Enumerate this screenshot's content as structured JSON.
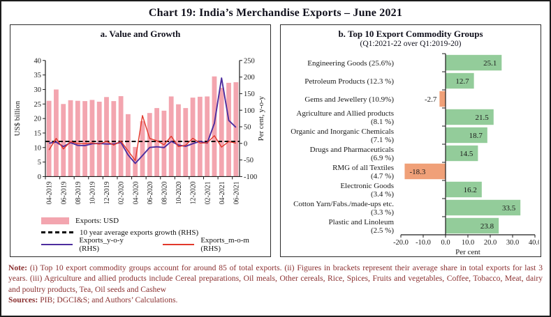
{
  "figure": {
    "title": "Chart 19: India’s Merchandise Exports – June 2021",
    "note": {
      "label": "Note:",
      "text": "(i) Top 10 export commodity groups account for around 85 of total exports. (ii) Figures in brackets represent their average share in total exports for last 3 years. (iii) Agriculture and allied products include Cereal preparations, Oil meals, Other cereals, Rice, Spices, Fruits and vegetables, Coffee, Tobacco, Meat, dairy and poultry products, Tea, Oil seeds and Cashew",
      "sources_label": "Sources:",
      "sources_text": "PIB; DGCI&S; and Authors’ Calculations."
    }
  },
  "chart_data": [
    {
      "id": "value-and-growth",
      "type": "bar",
      "subtype": "combo-bar-line",
      "title": "a. Value and Growth",
      "ylabel_left": "US$ billion",
      "ylabel_right": "Per cent, y-o-y",
      "ylim_left": [
        0,
        40
      ],
      "yticks_left": [
        0,
        5,
        10,
        15,
        20,
        25,
        30,
        35,
        40
      ],
      "ylim_right": [
        -100,
        250
      ],
      "yticks_right": [
        -100,
        -50,
        0,
        50,
        100,
        150,
        200,
        250
      ],
      "months": [
        "04-2019",
        "05-2019",
        "06-2019",
        "07-2019",
        "08-2019",
        "09-2019",
        "10-2019",
        "11-2019",
        "12-2019",
        "01-2020",
        "02-2020",
        "03-2020",
        "04-2020",
        "05-2020",
        "06-2020",
        "07-2020",
        "08-2020",
        "09-2020",
        "10-2020",
        "11-2020",
        "12-2020",
        "01-2021",
        "02-2021",
        "03-2021",
        "04-2021",
        "05-2021",
        "06-2021"
      ],
      "xtick_labels": [
        "04-2019",
        "06-2019",
        "08-2019",
        "10-2019",
        "12-2019",
        "02-2020",
        "04-2020",
        "06-2020",
        "08-2020",
        "10-2020",
        "12-2020",
        "02-2021",
        "04-2021",
        "06-2021"
      ],
      "bar_series": {
        "name": "Exports: USD",
        "axis": "left",
        "color": "#f3a5af",
        "values": [
          26.1,
          30.0,
          25.0,
          26.3,
          26.1,
          26.0,
          26.4,
          25.8,
          27.4,
          26.0,
          27.7,
          21.5,
          10.2,
          19.1,
          21.9,
          23.6,
          22.7,
          27.6,
          24.9,
          23.6,
          27.2,
          27.5,
          27.6,
          34.5,
          30.6,
          32.3,
          32.5
        ]
      },
      "reference_line": {
        "name": "10 year average exports growth (RHS)",
        "axis": "right",
        "style": "dashed",
        "color": "#000000",
        "value": 6
      },
      "line_series": [
        {
          "name": "Exports_y-o-y (RHS)",
          "axis": "right",
          "color": "#4d2d9e",
          "values": [
            0.6,
            3.9,
            -9.7,
            2.3,
            -6.0,
            -6.6,
            -1.1,
            -0.3,
            -1.8,
            -1.7,
            2.9,
            -34.6,
            -60.3,
            -36.5,
            -12.4,
            -10.2,
            -12.7,
            6.0,
            -5.1,
            -8.7,
            -0.8,
            6.2,
            0.7,
            60.3,
            197.0,
            69.4,
            48.3
          ]
        },
        {
          "name": "Exports_m-o-m (RHS)",
          "axis": "right",
          "color": "#e2382b",
          "values": [
            -19.9,
            15.0,
            -16.6,
            5.3,
            -0.8,
            -0.4,
            1.3,
            -2.3,
            6.2,
            -5.1,
            6.5,
            -22.3,
            -51.8,
            83.9,
            15.0,
            7.9,
            -4.0,
            21.5,
            -9.8,
            -5.5,
            15.4,
            1.1,
            1.7,
            23.3,
            -11.1,
            5.4,
            0.7
          ]
        }
      ]
    },
    {
      "id": "top-10-export-commodity-groups",
      "type": "bar",
      "subtype": "horizontal-bar",
      "title": "b. Top 10 Export Commodity Groups",
      "subtitle": "(Q1:2021-22 over Q1:2019-20)",
      "xlabel": "Per cent",
      "xlim": [
        -20,
        40
      ],
      "xticks": [
        -20,
        -10,
        0,
        10,
        20,
        30,
        40
      ],
      "xtick_labels": [
        "-20.0",
        "-10.0",
        "0.0",
        "10.0",
        "20.0",
        "30.0",
        "40.0"
      ],
      "positive_color": "#93cc9a",
      "negative_color": "#f0a078",
      "categories": [
        {
          "label_lines": [
            "Engineering Goods (25.6%)"
          ],
          "value": 25.1
        },
        {
          "label_lines": [
            "Petroleum Products (12.3 %)"
          ],
          "value": 12.7
        },
        {
          "label_lines": [
            "Gems and Jewellery (10.9%)"
          ],
          "value": -2.7
        },
        {
          "label_lines": [
            "Agriculture and Allied products",
            "(8.1 %)"
          ],
          "value": 21.5
        },
        {
          "label_lines": [
            "Organic and Inorganic Chemicals",
            "(7.1 %)"
          ],
          "value": 18.7
        },
        {
          "label_lines": [
            "Drugs and Pharmaceuticals",
            "(6.9 %)"
          ],
          "value": 14.5
        },
        {
          "label_lines": [
            "RMG of all Textiles",
            "(4.7 %)"
          ],
          "value": -18.3
        },
        {
          "label_lines": [
            "Electronic Goods",
            "(3.4 %)"
          ],
          "value": 16.2
        },
        {
          "label_lines": [
            "Cotton Yarn/Fabs./made-ups etc.",
            "(3.3 %)"
          ],
          "value": 33.5
        },
        {
          "label_lines": [
            "Plastic and Linoleum",
            "(2.5 %)"
          ],
          "value": 23.8
        }
      ]
    }
  ]
}
